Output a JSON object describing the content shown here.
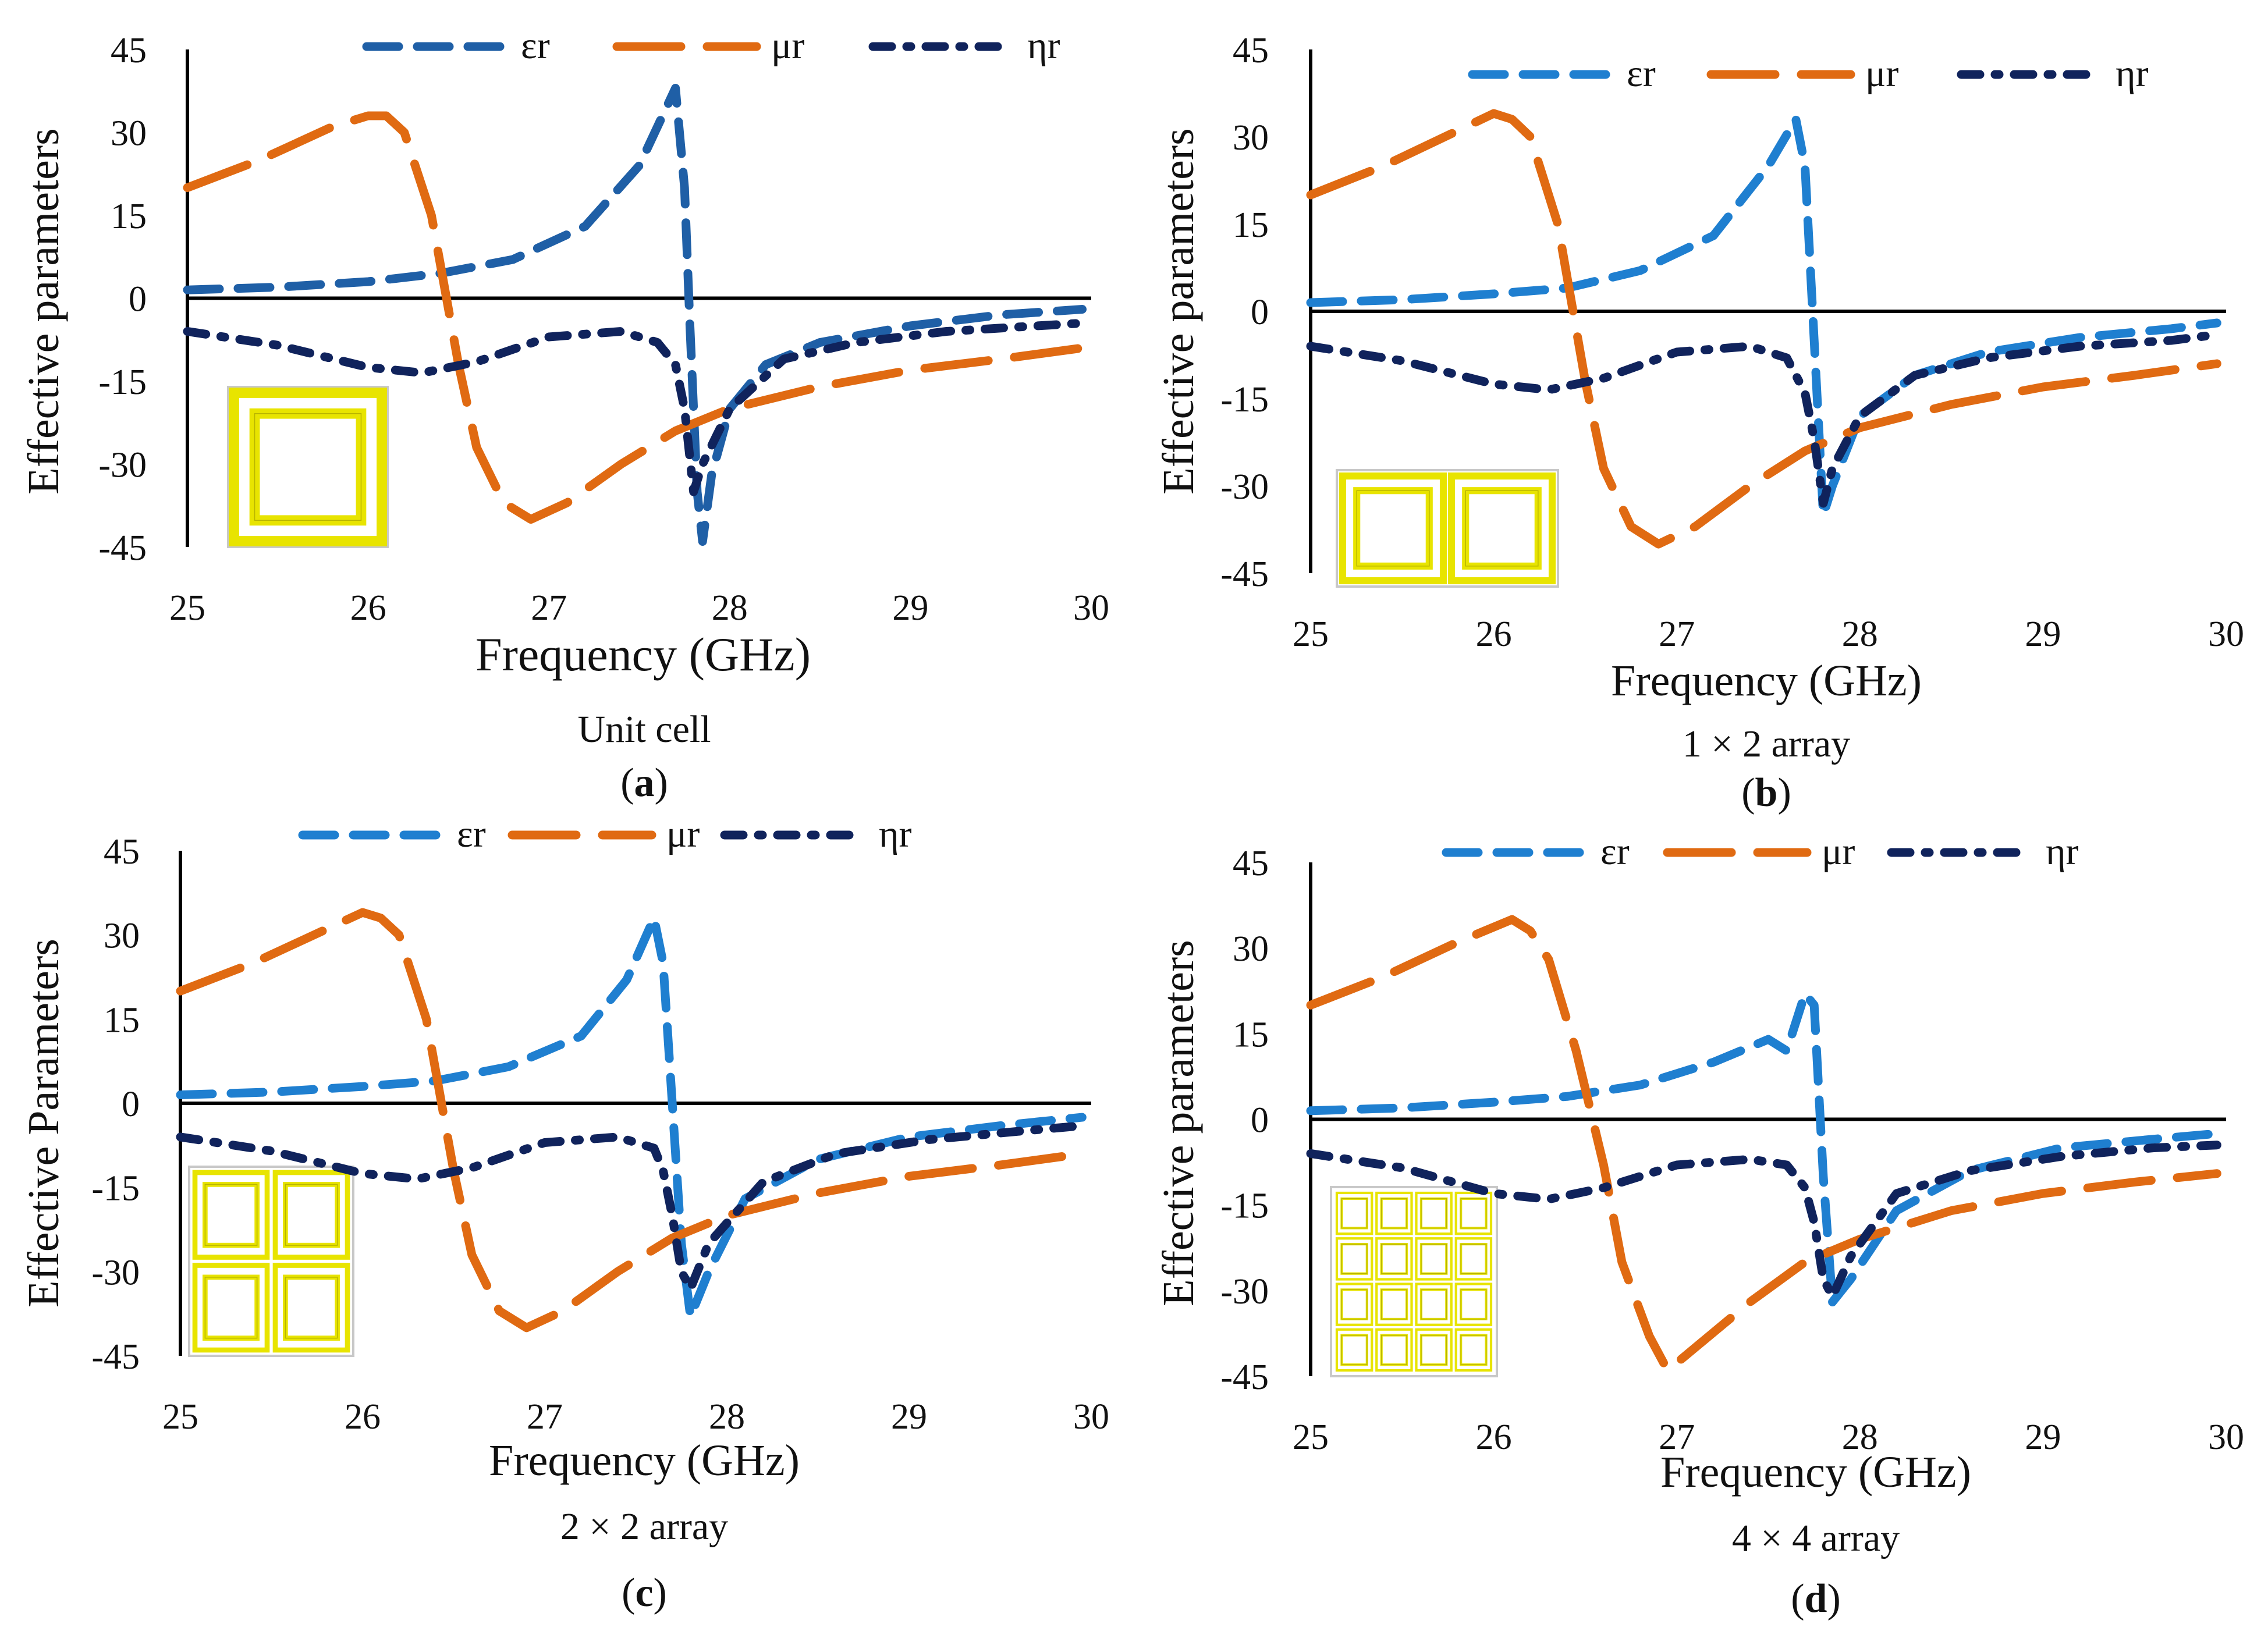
{
  "figure": {
    "panels": [
      {
        "caption": "Unit cell",
        "tag_open": "(",
        "tag_letter": "a",
        "tag_close": ")"
      },
      {
        "caption": "1 × 2 array",
        "tag_open": "(",
        "tag_letter": "b",
        "tag_close": ")"
      },
      {
        "caption": "2 × 2 array",
        "tag_open": "(",
        "tag_letter": "c",
        "tag_close": ")"
      },
      {
        "caption": "4 × 4 array",
        "tag_open": "(",
        "tag_letter": "d",
        "tag_close": ")"
      }
    ]
  },
  "colors": {
    "eps": "#1f5fa6",
    "eps_light": "#1f7fd0",
    "mu": "#e06a12",
    "eta": "#10235c",
    "inset_yellow": "#e8e400",
    "inset_dark": "#b8b400"
  },
  "chart_data": [
    {
      "type": "line",
      "title": "",
      "xlabel": "Frequency (GHz)",
      "ylabel": "Effective parameters",
      "xlim": [
        25,
        30
      ],
      "ylim": [
        -45,
        45
      ],
      "xticks": [
        "25",
        "26",
        "27",
        "28",
        "29",
        "30"
      ],
      "yticks": [
        "45",
        "30",
        "15",
        "0",
        "-15",
        "-30",
        "-45"
      ],
      "inset": "1x1",
      "series": [
        {
          "name": "εr",
          "key": "eps",
          "x": [
            25,
            25.5,
            26,
            26.4,
            26.8,
            27.2,
            27.5,
            27.7,
            27.75,
            27.78,
            27.82,
            27.85,
            27.9,
            28,
            28.2,
            28.5,
            29,
            29.5,
            29.95
          ],
          "y": [
            1.5,
            2,
            3,
            4.5,
            7,
            13,
            24,
            38,
            20,
            -5,
            -35,
            -44,
            -32,
            -20,
            -12,
            -8,
            -5,
            -3,
            -2
          ]
        },
        {
          "name": "μr",
          "key": "mu",
          "x": [
            25,
            25.4,
            25.8,
            26,
            26.1,
            26.2,
            26.35,
            26.5,
            26.6,
            26.75,
            26.9,
            27.1,
            27.4,
            27.7,
            28,
            28.5,
            29,
            29.5,
            29.95
          ],
          "y": [
            20,
            25,
            31,
            33,
            33,
            30,
            15,
            -12,
            -27,
            -37,
            -40,
            -37,
            -30,
            -24,
            -20,
            -16,
            -13,
            -11,
            -9
          ]
        },
        {
          "name": "ηr",
          "key": "eta",
          "x": [
            25,
            25.5,
            26,
            26.3,
            26.6,
            27,
            27.4,
            27.6,
            27.7,
            27.75,
            27.8,
            27.85,
            28,
            28.3,
            28.7,
            29.2,
            29.7,
            29.95
          ],
          "y": [
            -6,
            -8.5,
            -12.5,
            -13.5,
            -11.5,
            -7,
            -6,
            -8,
            -12,
            -20,
            -35,
            -30,
            -20,
            -11,
            -8,
            -6,
            -5,
            -4.5
          ]
        }
      ]
    },
    {
      "type": "line",
      "title": "",
      "xlabel": "Frequency (GHz)",
      "ylabel": "Effective parameters",
      "xlim": [
        25,
        30
      ],
      "ylim": [
        -45,
        45
      ],
      "xticks": [
        "25",
        "26",
        "27",
        "28",
        "29",
        "30"
      ],
      "yticks": [
        "45",
        "30",
        "15",
        "0",
        "-15",
        "-30",
        "-45"
      ],
      "inset": "1x2",
      "series": [
        {
          "name": "εr",
          "key": "eps_light",
          "x": [
            25,
            25.5,
            26,
            26.4,
            26.8,
            27.2,
            27.5,
            27.65,
            27.7,
            27.75,
            27.8,
            27.85,
            28,
            28.3,
            28.7,
            29.2,
            29.7,
            29.95
          ],
          "y": [
            1.5,
            2,
            3,
            4,
            7,
            13,
            25,
            33,
            25,
            -5,
            -35,
            -30,
            -18,
            -11,
            -7,
            -4.5,
            -3,
            -2
          ]
        },
        {
          "name": "μr",
          "key": "mu",
          "x": [
            25,
            25.4,
            25.8,
            26,
            26.1,
            26.2,
            26.35,
            26.5,
            26.6,
            26.75,
            26.9,
            27.1,
            27.4,
            27.7,
            28,
            28.5,
            29,
            29.5,
            29.95
          ],
          "y": [
            20,
            25,
            31,
            34,
            33,
            30,
            15,
            -12,
            -27,
            -37,
            -40,
            -37,
            -30,
            -24,
            -20,
            -16,
            -13,
            -11,
            -9
          ]
        },
        {
          "name": "ηr",
          "key": "eta",
          "x": [
            25,
            25.5,
            26,
            26.3,
            26.6,
            27,
            27.4,
            27.6,
            27.7,
            27.75,
            27.8,
            27.85,
            28,
            28.3,
            28.7,
            29.2,
            29.7,
            29.95
          ],
          "y": [
            -6,
            -8.5,
            -12.5,
            -13.5,
            -11.5,
            -7,
            -6,
            -8,
            -14,
            -22,
            -33,
            -27,
            -18,
            -11,
            -8,
            -6,
            -5,
            -4
          ]
        }
      ]
    },
    {
      "type": "line",
      "title": "",
      "xlabel": "Frequency (GHz)",
      "ylabel": "Effective Parameters",
      "xlim": [
        25,
        30
      ],
      "ylim": [
        -45,
        45
      ],
      "xticks": [
        "25",
        "26",
        "27",
        "28",
        "29",
        "30"
      ],
      "yticks": [
        "45",
        "30",
        "15",
        "0",
        "-15",
        "-30",
        "-45"
      ],
      "inset": "2x2",
      "series": [
        {
          "name": "εr",
          "key": "eps_light",
          "x": [
            25,
            25.5,
            26,
            26.4,
            26.8,
            27.2,
            27.45,
            27.6,
            27.65,
            27.7,
            27.75,
            27.8,
            27.9,
            28.1,
            28.5,
            29,
            29.5,
            29.95
          ],
          "y": [
            1.5,
            2,
            3,
            4,
            6.5,
            12,
            22,
            33,
            25,
            0,
            -25,
            -38,
            -30,
            -17,
            -10,
            -6,
            -4,
            -2.5
          ]
        },
        {
          "name": "μr",
          "key": "mu",
          "x": [
            25,
            25.4,
            25.8,
            26,
            26.1,
            26.2,
            26.35,
            26.5,
            26.6,
            26.75,
            26.9,
            27.1,
            27.4,
            27.7,
            28,
            28.5,
            29,
            29.5,
            29.95
          ],
          "y": [
            20,
            25,
            31,
            34,
            33,
            30,
            15,
            -12,
            -27,
            -37,
            -40,
            -37,
            -30,
            -24,
            -20,
            -16,
            -13,
            -11,
            -9
          ]
        },
        {
          "name": "ηr",
          "key": "eta",
          "x": [
            25,
            25.5,
            26,
            26.3,
            26.6,
            27,
            27.4,
            27.6,
            27.65,
            27.7,
            27.75,
            27.8,
            27.9,
            28.2,
            28.6,
            29.1,
            29.6,
            29.95
          ],
          "y": [
            -6,
            -8.5,
            -12.5,
            -13.5,
            -11.5,
            -7,
            -6,
            -8,
            -12,
            -20,
            -30,
            -33,
            -25,
            -14,
            -9,
            -6.5,
            -5,
            -4
          ]
        }
      ]
    },
    {
      "type": "line",
      "title": "",
      "xlabel": "Frequency (GHz)",
      "ylabel": "Effective parameters",
      "xlim": [
        25,
        30
      ],
      "ylim": [
        -45,
        45
      ],
      "xticks": [
        "25",
        "26",
        "27",
        "28",
        "29",
        "30"
      ],
      "yticks": [
        "45",
        "30",
        "15",
        "0",
        "-15",
        "-30",
        "-45"
      ],
      "inset": "4x4",
      "series": [
        {
          "name": "εr",
          "key": "eps_light",
          "x": [
            25,
            25.5,
            26,
            26.4,
            26.8,
            27.2,
            27.5,
            27.6,
            27.7,
            27.75,
            27.8,
            27.85,
            27.95,
            28.2,
            28.6,
            29.1,
            29.6,
            29.95
          ],
          "y": [
            1.5,
            2,
            3,
            4,
            6,
            10,
            14,
            12,
            22,
            20,
            -10,
            -32,
            -28,
            -16,
            -9,
            -5,
            -3.5,
            -2.5
          ]
        },
        {
          "name": "μr",
          "key": "mu",
          "x": [
            25,
            25.4,
            25.8,
            26.1,
            26.2,
            26.3,
            26.45,
            26.6,
            26.7,
            26.85,
            26.95,
            27.1,
            27.4,
            27.7,
            28,
            28.5,
            29,
            29.5,
            29.95
          ],
          "y": [
            20,
            25,
            31,
            35,
            33,
            28,
            12,
            -8,
            -25,
            -38,
            -44,
            -40,
            -32,
            -25,
            -21,
            -16,
            -13,
            -11,
            -9.5
          ]
        },
        {
          "name": "ηr",
          "key": "eta",
          "x": [
            25,
            25.5,
            26,
            26.3,
            26.6,
            27,
            27.4,
            27.6,
            27.7,
            27.75,
            27.8,
            27.85,
            27.95,
            28.2,
            28.6,
            29.1,
            29.6,
            29.95
          ],
          "y": [
            -6,
            -8.5,
            -13,
            -14,
            -12,
            -8,
            -7,
            -8,
            -12,
            -18,
            -28,
            -31,
            -24,
            -13,
            -9,
            -6.5,
            -5,
            -4.5
          ]
        }
      ]
    }
  ]
}
